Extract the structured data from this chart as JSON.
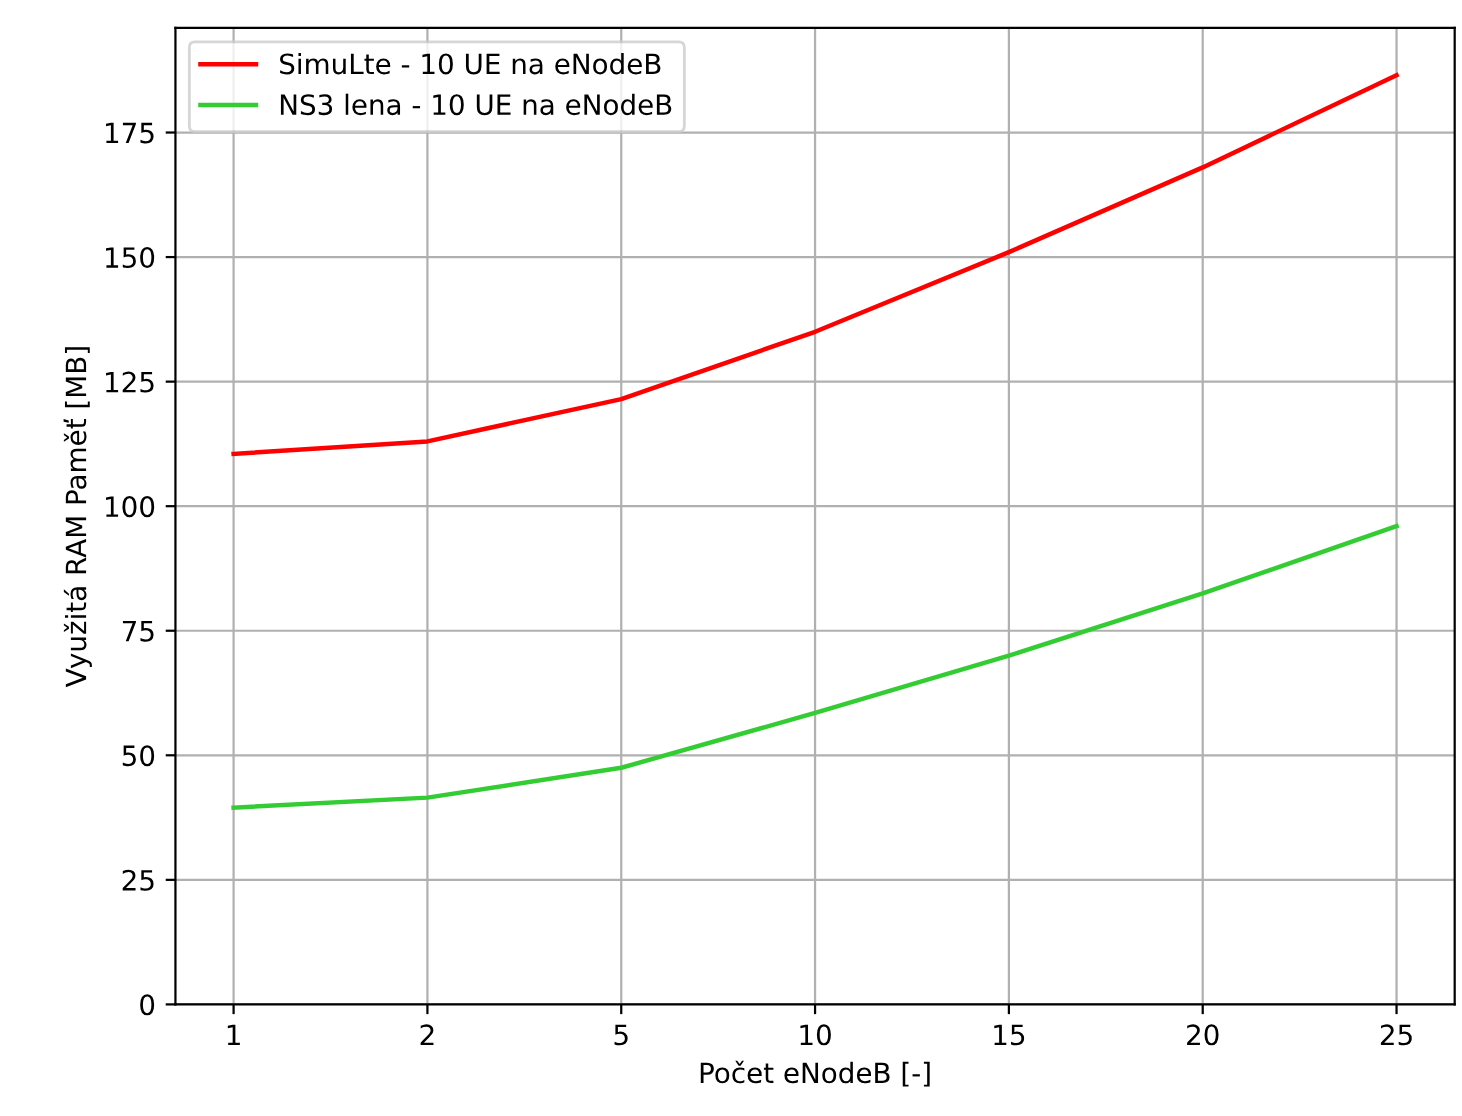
{
  "chart_data": {
    "type": "line",
    "xlabel": "Počet eNodeB [-]",
    "ylabel": "Využitá RAM Paměť [MB]",
    "categories": [
      "1",
      "2",
      "5",
      "10",
      "15",
      "20",
      "25"
    ],
    "series": [
      {
        "name": "SimuLte - 10 UE na eNodeB",
        "color": "#ff0000",
        "values": [
          110.5,
          113,
          121.5,
          135,
          151,
          168,
          186.5
        ]
      },
      {
        "name": "NS3 lena - 10 UE na eNodeB",
        "color": "#33cc33",
        "values": [
          39.5,
          41.5,
          47.5,
          58.5,
          70,
          82.5,
          96
        ]
      }
    ],
    "ylim": [
      0,
      196
    ],
    "yticks": [
      0,
      25,
      50,
      75,
      100,
      125,
      150,
      175
    ],
    "grid": true,
    "legend": "top left",
    "marker": "none",
    "line_style": "solid"
  }
}
